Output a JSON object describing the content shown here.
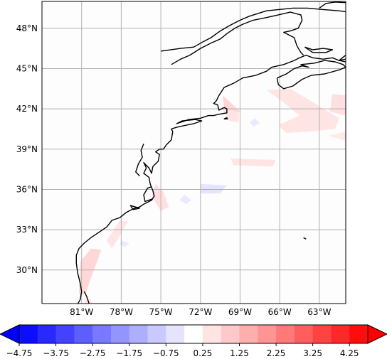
{
  "map": {
    "lon_range": [
      -84,
      -61
    ],
    "lat_range": [
      27.5,
      50
    ],
    "gridlines": true,
    "coastline_color": "#000000",
    "gridline_color": "#b0b0b0"
  },
  "lat_ticks": [
    {
      "value": 48,
      "label": "48°N"
    },
    {
      "value": 45,
      "label": "45°N"
    },
    {
      "value": 42,
      "label": "42°N"
    },
    {
      "value": 39,
      "label": "39°N"
    },
    {
      "value": 36,
      "label": "36°N"
    },
    {
      "value": 33,
      "label": "33°N"
    },
    {
      "value": 30,
      "label": "30°N"
    }
  ],
  "lon_ticks": [
    {
      "value": -81,
      "label": "81°W"
    },
    {
      "value": -78,
      "label": "78°W"
    },
    {
      "value": -75,
      "label": "75°W"
    },
    {
      "value": -72,
      "label": "72°W"
    },
    {
      "value": -69,
      "label": "69°W"
    },
    {
      "value": -66,
      "label": "66°W"
    },
    {
      "value": -63,
      "label": "63°W"
    }
  ],
  "colorbar": {
    "colormap": "bwr",
    "min": -4.75,
    "max": 4.75,
    "bins": 19,
    "extend": "both",
    "tick_values": [
      -4.75,
      -3.75,
      -2.75,
      -1.75,
      -0.75,
      0.25,
      1.25,
      2.25,
      3.25,
      4.25
    ],
    "tick_labels": [
      "−4.75",
      "−3.75",
      "−2.75",
      "−1.75",
      "−0.75",
      "0.25",
      "1.25",
      "2.25",
      "3.25",
      "4.25"
    ]
  },
  "anomaly_patches": [
    {
      "value": 0.75,
      "points": [
        [
          -70.3,
          43.0
        ],
        [
          -70.2,
          41.8
        ],
        [
          -69.5,
          41.5
        ],
        [
          -69.0,
          41.8
        ]
      ]
    },
    {
      "value": 0.5,
      "points": [
        [
          -70.5,
          42.2
        ],
        [
          -69.8,
          41.1
        ],
        [
          -69.1,
          41.0
        ],
        [
          -69.1,
          41.7
        ]
      ]
    },
    {
      "value": 0.5,
      "points": [
        [
          -65.2,
          43.5
        ],
        [
          -63.5,
          42.5
        ],
        [
          -61.5,
          41.3
        ],
        [
          -61.8,
          40.5
        ],
        [
          -63.9,
          40.3
        ],
        [
          -65.5,
          40.2
        ],
        [
          -66.1,
          40.8
        ],
        [
          -64.5,
          41.5
        ],
        [
          -66.0,
          42.7
        ],
        [
          -67.0,
          43.4
        ]
      ]
    },
    {
      "value": 0.6,
      "points": [
        [
          -62.0,
          43.1
        ],
        [
          -61.0,
          43.0
        ],
        [
          -61.0,
          41.5
        ],
        [
          -62.2,
          41.8
        ]
      ]
    },
    {
      "value": 0.4,
      "points": [
        [
          -62.3,
          40.0
        ],
        [
          -61.0,
          39.6
        ],
        [
          -61.0,
          40.3
        ]
      ]
    },
    {
      "value": 0.5,
      "points": [
        [
          -69.7,
          38.3
        ],
        [
          -66.3,
          38.2
        ],
        [
          -66.5,
          37.7
        ],
        [
          -69.5,
          37.8
        ]
      ]
    },
    {
      "value": -0.5,
      "points": [
        [
          -72.0,
          36.4
        ],
        [
          -70.0,
          36.3
        ],
        [
          -70.5,
          35.7
        ],
        [
          -72.0,
          35.7
        ]
      ]
    },
    {
      "value": -0.4,
      "points": [
        [
          -73.2,
          35.6
        ],
        [
          -72.7,
          35.2
        ],
        [
          -73.1,
          34.9
        ],
        [
          -73.6,
          35.2
        ]
      ]
    },
    {
      "value": -0.4,
      "points": [
        [
          -67.9,
          41.3
        ],
        [
          -67.5,
          40.9
        ],
        [
          -68.0,
          40.7
        ],
        [
          -68.3,
          41.0
        ]
      ]
    },
    {
      "value": 0.6,
      "points": [
        [
          -75.4,
          36.4
        ],
        [
          -74.8,
          35.8
        ],
        [
          -74.4,
          34.7
        ],
        [
          -75.0,
          34.4
        ],
        [
          -75.7,
          35.5
        ]
      ]
    },
    {
      "value": 0.5,
      "points": [
        [
          -77.5,
          33.6
        ],
        [
          -78.1,
          33.7
        ],
        [
          -79.1,
          32.2
        ],
        [
          -78.7,
          31.6
        ],
        [
          -78.2,
          32.4
        ]
      ]
    },
    {
      "value": -0.4,
      "points": [
        [
          -78.0,
          32.2
        ],
        [
          -77.4,
          32.0
        ],
        [
          -77.7,
          31.7
        ],
        [
          -78.1,
          31.9
        ]
      ]
    },
    {
      "value": 0.75,
      "points": [
        [
          -80.3,
          31.6
        ],
        [
          -79.5,
          31.5
        ],
        [
          -80.4,
          29.1
        ],
        [
          -80.7,
          28.2
        ],
        [
          -81.2,
          28.2
        ],
        [
          -81.1,
          30.6
        ]
      ]
    },
    {
      "value": 0.4,
      "points": [
        [
          -80.8,
          28.0
        ],
        [
          -80.3,
          27.8
        ],
        [
          -80.1,
          26.8
        ],
        [
          -80.8,
          27.0
        ]
      ]
    }
  ],
  "coastlines": [
    [
      [
        -81.9,
        26.4
      ],
      [
        -81.4,
        26.9
      ],
      [
        -81.4,
        27.3
      ],
      [
        -81.1,
        27.8
      ],
      [
        -81.0,
        28.4
      ],
      [
        -81.1,
        29.0
      ],
      [
        -81.3,
        29.8
      ],
      [
        -81.4,
        30.5
      ],
      [
        -81.4,
        31.1
      ],
      [
        -81.2,
        31.6
      ],
      [
        -80.8,
        32.0
      ],
      [
        -80.3,
        32.4
      ],
      [
        -79.7,
        32.8
      ],
      [
        -79.1,
        33.2
      ],
      [
        -78.7,
        33.7
      ],
      [
        -78.1,
        33.9
      ],
      [
        -77.6,
        34.3
      ],
      [
        -77.0,
        34.6
      ],
      [
        -76.6,
        34.7
      ],
      [
        -76.3,
        34.9
      ],
      [
        -75.7,
        35.2
      ],
      [
        -75.5,
        35.5
      ],
      [
        -75.6,
        35.9
      ],
      [
        -75.8,
        36.4
      ],
      [
        -75.9,
        36.9
      ],
      [
        -76.3,
        37.2
      ],
      [
        -76.1,
        37.6
      ],
      [
        -76.3,
        38.0
      ],
      [
        -75.9,
        37.6
      ],
      [
        -75.7,
        37.2
      ],
      [
        -75.6,
        37.7
      ],
      [
        -75.2,
        38.1
      ],
      [
        -75.1,
        38.6
      ],
      [
        -75.4,
        38.8
      ],
      [
        -75.1,
        39.0
      ],
      [
        -74.8,
        39.0
      ],
      [
        -74.6,
        39.3
      ],
      [
        -74.2,
        39.7
      ],
      [
        -74.1,
        40.3
      ],
      [
        -74.2,
        40.5
      ],
      [
        -73.9,
        40.6
      ],
      [
        -73.5,
        40.7
      ],
      [
        -72.5,
        40.9
      ],
      [
        -71.9,
        41.1
      ],
      [
        -72.4,
        41.2
      ],
      [
        -73.4,
        41.1
      ],
      [
        -73.8,
        40.9
      ],
      [
        -72.9,
        41.2
      ],
      [
        -72.0,
        41.3
      ],
      [
        -71.4,
        41.5
      ],
      [
        -71.0,
        41.5
      ],
      [
        -70.6,
        41.6
      ],
      [
        -70.0,
        41.7
      ],
      [
        -70.0,
        42.0
      ],
      [
        -70.2,
        42.1
      ],
      [
        -70.6,
        41.9
      ],
      [
        -70.7,
        42.3
      ],
      [
        -71.0,
        42.4
      ],
      [
        -70.8,
        42.6
      ],
      [
        -70.6,
        43.0
      ],
      [
        -70.2,
        43.6
      ],
      [
        -69.5,
        43.9
      ],
      [
        -68.8,
        44.3
      ],
      [
        -67.8,
        44.5
      ],
      [
        -67.0,
        44.8
      ],
      [
        -66.6,
        45.1
      ],
      [
        -65.7,
        45.3
      ],
      [
        -64.9,
        45.6
      ],
      [
        -64.5,
        45.8
      ],
      [
        -64.0,
        46.0
      ],
      [
        -63.5,
        45.8
      ],
      [
        -62.7,
        45.7
      ],
      [
        -62.0,
        45.8
      ],
      [
        -61.5,
        45.6
      ],
      [
        -61.0,
        45.5
      ]
    ],
    [
      [
        -66.2,
        44.3
      ],
      [
        -65.5,
        44.6
      ],
      [
        -64.9,
        45.0
      ],
      [
        -64.3,
        45.2
      ],
      [
        -63.8,
        45.1
      ],
      [
        -64.4,
        45.3
      ],
      [
        -63.4,
        45.4
      ],
      [
        -62.6,
        45.6
      ],
      [
        -61.8,
        45.5
      ],
      [
        -61.2,
        45.3
      ],
      [
        -61.0,
        45.1
      ],
      [
        -61.5,
        44.9
      ],
      [
        -62.6,
        44.6
      ],
      [
        -63.6,
        44.5
      ],
      [
        -64.3,
        44.2
      ],
      [
        -65.0,
        43.7
      ],
      [
        -65.7,
        43.5
      ],
      [
        -66.1,
        43.8
      ],
      [
        -66.2,
        44.3
      ]
    ],
    [
      [
        -64.1,
        46.6
      ],
      [
        -63.5,
        46.4
      ],
      [
        -62.7,
        46.5
      ],
      [
        -62.0,
        46.4
      ],
      [
        -62.5,
        46.2
      ],
      [
        -63.5,
        46.2
      ],
      [
        -64.1,
        46.6
      ]
    ],
    [
      [
        -61.5,
        45.6
      ],
      [
        -61.0,
        46.0
      ],
      [
        -60.6,
        46.6
      ],
      [
        -60.3,
        46.8
      ],
      [
        -60.0,
        46.3
      ],
      [
        -60.5,
        45.9
      ],
      [
        -61.0,
        45.7
      ],
      [
        -61.5,
        45.6
      ]
    ],
    [
      [
        -75.0,
        46.3
      ],
      [
        -73.5,
        46.5
      ],
      [
        -72.5,
        46.6
      ],
      [
        -71.8,
        47.0
      ],
      [
        -71.2,
        47.3
      ],
      [
        -70.5,
        47.8
      ],
      [
        -69.8,
        48.2
      ],
      [
        -69.0,
        48.6
      ],
      [
        -68.3,
        48.9
      ],
      [
        -67.0,
        49.3
      ],
      [
        -66.0,
        49.4
      ],
      [
        -65.0,
        49.5
      ],
      [
        -63.9,
        49.5
      ],
      [
        -62.8,
        49.4
      ],
      [
        -61.5,
        49.3
      ],
      [
        -60.8,
        49.2
      ]
    ],
    [
      [
        -74.2,
        45.3
      ],
      [
        -73.5,
        45.7
      ],
      [
        -72.8,
        46.0
      ],
      [
        -72.0,
        46.5
      ],
      [
        -71.2,
        46.9
      ],
      [
        -70.5,
        47.2
      ],
      [
        -70.0,
        47.6
      ],
      [
        -69.4,
        48.0
      ],
      [
        -68.8,
        48.3
      ],
      [
        -68.0,
        48.6
      ],
      [
        -67.0,
        48.8
      ],
      [
        -66.1,
        49.0
      ],
      [
        -65.2,
        49.2
      ],
      [
        -64.4,
        49.0
      ],
      [
        -64.3,
        48.6
      ],
      [
        -64.6,
        48.0
      ],
      [
        -65.2,
        47.8
      ],
      [
        -65.7,
        47.7
      ],
      [
        -64.9,
        47.3
      ],
      [
        -64.7,
        46.7
      ],
      [
        -64.4,
        46.2
      ],
      [
        -64.2,
        46.0
      ]
    ],
    [
      [
        -80.8,
        28.4
      ],
      [
        -80.6,
        28.0
      ],
      [
        -80.4,
        27.4
      ],
      [
        -80.2,
        26.8
      ]
    ],
    [
      [
        -76.3,
        39.4
      ],
      [
        -76.5,
        38.9
      ],
      [
        -76.4,
        38.4
      ],
      [
        -76.7,
        37.9
      ],
      [
        -76.9,
        37.3
      ],
      [
        -76.6,
        37.0
      ]
    ],
    [
      [
        -70.0,
        41.35
      ],
      [
        -69.95,
        41.25
      ],
      [
        -70.2,
        41.25
      ],
      [
        -70.0,
        41.35
      ]
    ],
    [
      [
        -64.2,
        32.4
      ],
      [
        -64.0,
        32.3
      ]
    ],
    [
      [
        -60.8,
        49.9
      ],
      [
        -61.8,
        49.95
      ],
      [
        -62.5,
        49.85
      ],
      [
        -63.0,
        49.5
      ]
    ],
    [
      [
        -75.6,
        35.3
      ],
      [
        -76.2,
        35.1
      ],
      [
        -76.3,
        35.6
      ],
      [
        -76.0,
        36.1
      ],
      [
        -75.7,
        36.2
      ]
    ],
    [
      [
        -76.6,
        34.6
      ],
      [
        -77.3,
        34.8
      ],
      [
        -77.1,
        34.5
      ],
      [
        -76.6,
        34.6
      ]
    ]
  ]
}
